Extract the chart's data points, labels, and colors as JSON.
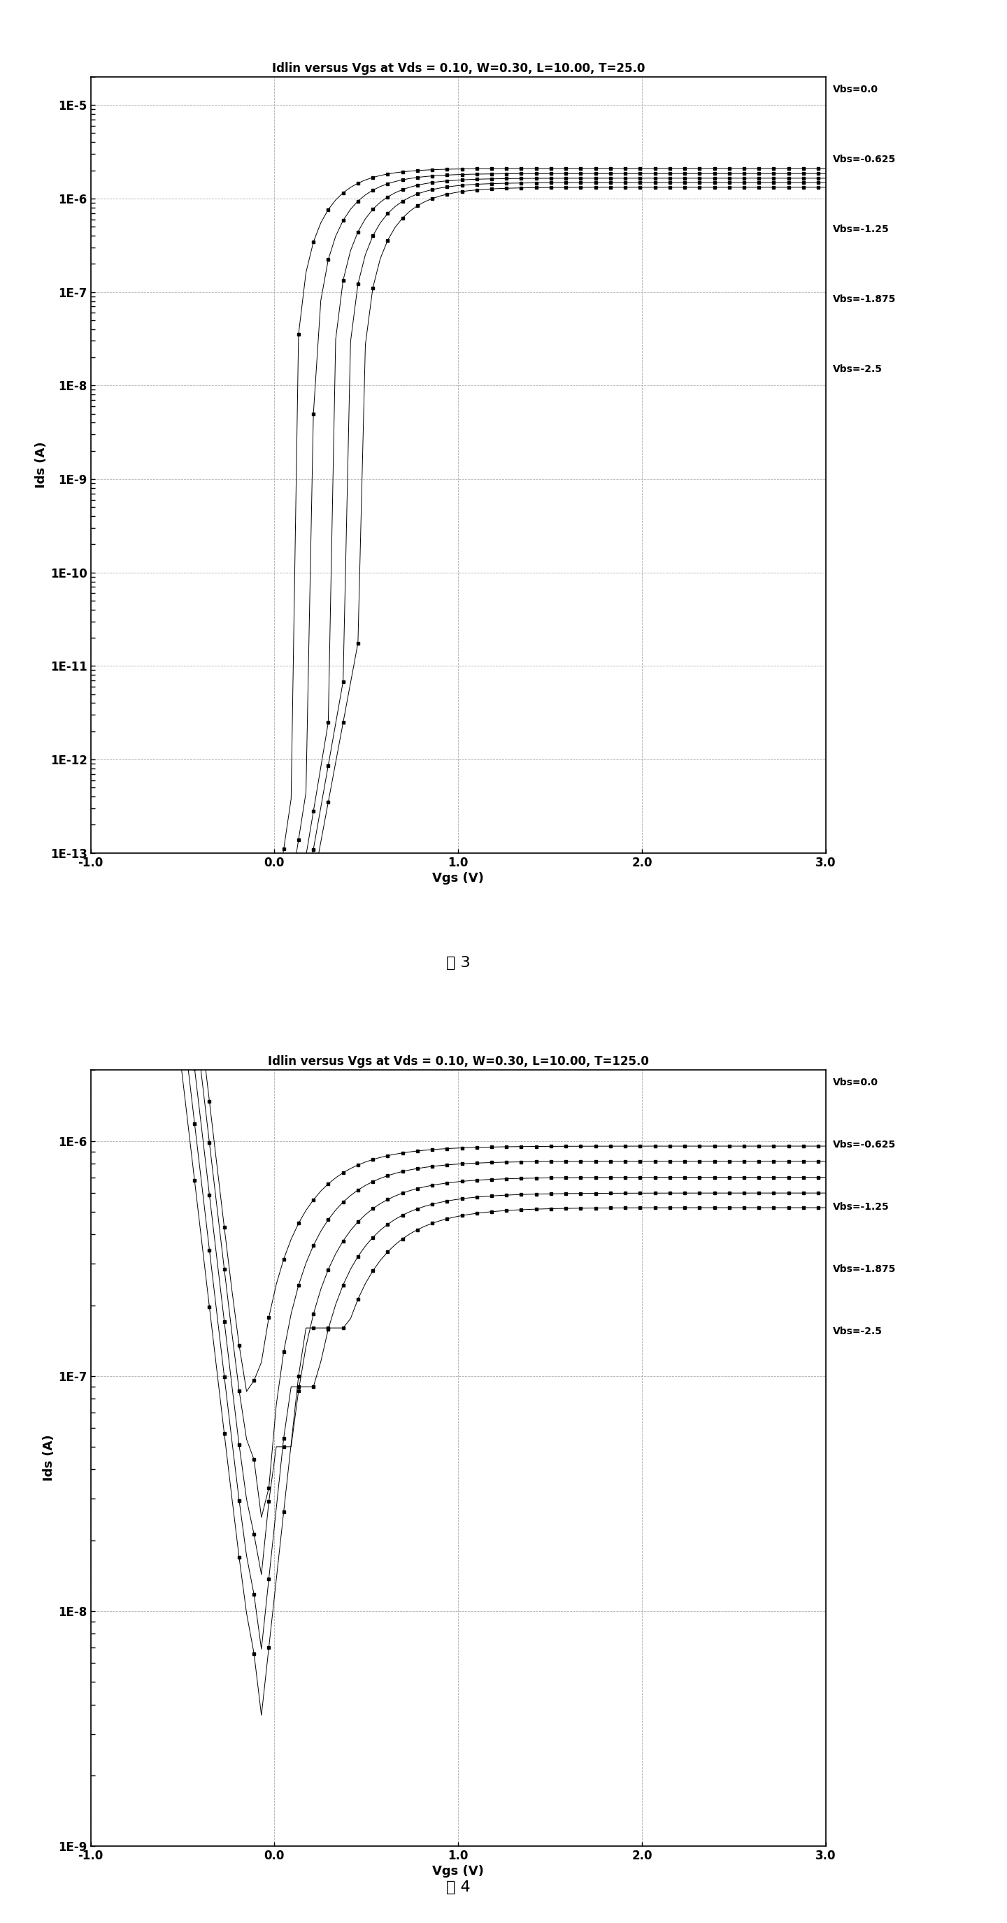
{
  "fig1": {
    "title": "Idlin versus Vgs at Vds = 0.10, W=0.30, L=10.00, T=25.0",
    "ylabel": "Ids (A)",
    "xlabel": "Vgs (V)",
    "xlim": [
      -1.0,
      3.0
    ],
    "ymin": 1e-13,
    "ymax": 2e-05,
    "yticks": [
      1e-13,
      1e-12,
      1e-11,
      1e-10,
      1e-09,
      1e-08,
      1e-07,
      1e-06,
      1e-05
    ],
    "ytick_labels": [
      "1E-13",
      "1E-12",
      "1E-11",
      "1E-10",
      "1E-9",
      "1E-8",
      "1E-7",
      "1E-6",
      "1E-5"
    ],
    "xticks": [
      -1.0,
      0.0,
      1.0,
      2.0,
      3.0
    ],
    "xtick_labels": [
      "-1.0",
      "0.0",
      "1.0",
      "2.0",
      "3.0"
    ],
    "legend": [
      "Vbs=0.0",
      "Vbs=-0.625",
      "Vbs=-1.25",
      "Vbs=-1.875",
      "Vbs=-2.5"
    ],
    "fig_label": "图 3",
    "curves": [
      {
        "vth": 0.1,
        "slope_dec": 0.075,
        "ioff": 5e-13,
        "ion": 2.1e-06,
        "ion_sat": 2.3e-06
      },
      {
        "vth": 0.2,
        "slope_dec": 0.08,
        "ioff": 1e-12,
        "ion": 1.85e-06,
        "ion_sat": 2e-06
      },
      {
        "vth": 0.3,
        "slope_dec": 0.085,
        "ioff": 3e-12,
        "ion": 1.65e-06,
        "ion_sat": 1.8e-06
      },
      {
        "vth": 0.38,
        "slope_dec": 0.09,
        "ioff": 8e-12,
        "ion": 1.48e-06,
        "ion_sat": 1.6e-06
      },
      {
        "vth": 0.46,
        "slope_dec": 0.095,
        "ioff": 2e-11,
        "ion": 1.32e-06,
        "ion_sat": 1.45e-06
      }
    ]
  },
  "fig2": {
    "title": "Idlin versus Vgs at Vds = 0.10, W=0.30, L=10.00, T=125.0",
    "ylabel": "Ids (A)",
    "xlabel": "Vgs (V)",
    "xlim": [
      -1.0,
      3.0
    ],
    "ymin": 2e-09,
    "ymax": 2e-06,
    "yticks": [
      1e-09,
      1e-08,
      1e-07,
      1e-06
    ],
    "ytick_labels": [
      "1E-9",
      "1E-8",
      "1E-7",
      "1E-6"
    ],
    "xticks": [
      -1.0,
      0.0,
      1.0,
      2.0,
      3.0
    ],
    "xtick_labels": [
      "-1.0",
      "0.0",
      "1.0",
      "2.0",
      "3.0"
    ],
    "legend": [
      "Vbs=0.0",
      "Vbs=-0.625",
      "Vbs=-1.25",
      "Vbs=-1.875",
      "Vbs=-2.5"
    ],
    "fig_label": "图 4",
    "curves": [
      {
        "vth": -0.2,
        "slope_dec": 0.12,
        "ioff": 1.2e-08,
        "ion": 9.5e-07,
        "ileak_slope": 0.15,
        "ileak_ref": 3e-08
      },
      {
        "vth": -0.1,
        "slope_dec": 0.125,
        "ioff": 2.5e-08,
        "ion": 8.2e-07,
        "ileak_slope": 0.15,
        "ileak_ref": 2e-08
      },
      {
        "vth": 0.0,
        "slope_dec": 0.13,
        "ioff": 5e-08,
        "ion": 7e-07,
        "ileak_slope": 0.15,
        "ileak_ref": 1.2e-08
      },
      {
        "vth": 0.08,
        "slope_dec": 0.135,
        "ioff": 9e-08,
        "ion": 6e-07,
        "ileak_slope": 0.15,
        "ileak_ref": 7e-09
      },
      {
        "vth": 0.16,
        "slope_dec": 0.14,
        "ioff": 1.6e-07,
        "ion": 5.2e-07,
        "ileak_slope": 0.15,
        "ileak_ref": 4e-09
      }
    ]
  },
  "background_color": "#ffffff",
  "plot_bg_color": "#ffffff",
  "line_color": "#000000",
  "marker": "s",
  "markersize": 3.5,
  "linewidth": 0.7
}
